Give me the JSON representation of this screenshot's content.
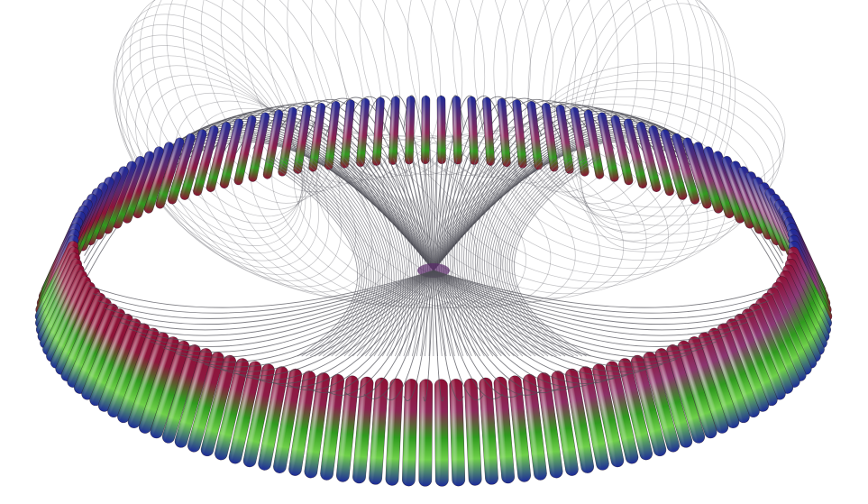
{
  "image": {
    "subject": "torus-knot-render",
    "background_color": "#ffffff",
    "colors": {
      "crimson": "#8e1034",
      "magenta": "#8a3a78",
      "purple": "#5a2a70",
      "green": "#2f9a1e",
      "bright_green": "#6fd04a",
      "blue": "#1c2a9a",
      "wire": "#505058"
    }
  }
}
